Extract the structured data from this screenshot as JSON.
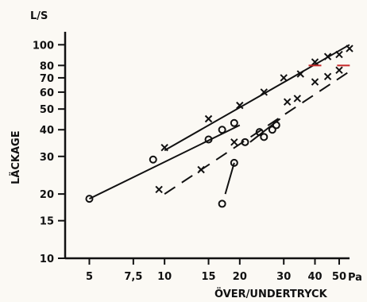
{
  "chart_data": {
    "type": "scatter",
    "x_scale": "log",
    "y_scale": "log",
    "y_unit": "L/S",
    "x_unit": "Pa",
    "ylabel": "LÄCKAGE",
    "xlabel": "ÖVER/UNDERTRYCK",
    "xlim": [
      4,
      55
    ],
    "ylim": [
      10,
      115
    ],
    "x_ticks": [
      {
        "value": 5,
        "label": "5"
      },
      {
        "value": 7.5,
        "label": "7,5"
      },
      {
        "value": 10,
        "label": "10"
      },
      {
        "value": 15,
        "label": "15"
      },
      {
        "value": 20,
        "label": "20"
      },
      {
        "value": 30,
        "label": "30"
      },
      {
        "value": 40,
        "label": "40"
      },
      {
        "value": 50,
        "label": "50"
      }
    ],
    "y_ticks": [
      {
        "value": 10,
        "label": "10"
      },
      {
        "value": 15,
        "label": "15"
      },
      {
        "value": 20,
        "label": "20"
      },
      {
        "value": 30,
        "label": "30"
      },
      {
        "value": 40,
        "label": "40"
      },
      {
        "value": 50,
        "label": "50"
      },
      {
        "value": 60,
        "label": "60"
      },
      {
        "value": 70,
        "label": "70"
      },
      {
        "value": 80,
        "label": "80",
        "color": "#8a1c1c"
      },
      {
        "value": 100,
        "label": "100"
      }
    ],
    "series": [
      {
        "marker": "x",
        "line": "solid",
        "points": [
          [
            10,
            33
          ],
          [
            15,
            45
          ],
          [
            20,
            52
          ],
          [
            25,
            60
          ],
          [
            30,
            70
          ],
          [
            35,
            73
          ],
          [
            40,
            83
          ],
          [
            45,
            88
          ],
          [
            50,
            90
          ],
          [
            55,
            96
          ]
        ]
      },
      {
        "marker": "o",
        "line": "solid",
        "points": [
          [
            5,
            19
          ],
          [
            9,
            29
          ],
          [
            15,
            36
          ],
          [
            17,
            40
          ],
          [
            19,
            43
          ]
        ]
      },
      {
        "marker": "x",
        "line": "dashed",
        "points": [
          [
            9.5,
            21
          ],
          [
            14,
            26
          ],
          [
            19,
            35
          ],
          [
            31,
            54
          ],
          [
            34,
            56
          ],
          [
            40,
            67
          ],
          [
            45,
            71
          ],
          [
            50,
            76
          ]
        ]
      },
      {
        "marker": "o",
        "line": "dashed",
        "points": [
          [
            19,
            28
          ],
          [
            21,
            35
          ],
          [
            24,
            39
          ],
          [
            25,
            37
          ],
          [
            27,
            40
          ],
          [
            28,
            42
          ],
          [
            17,
            18
          ]
        ]
      }
    ],
    "fit_lines": [
      {
        "style": "solid",
        "from": [
          10,
          32
        ],
        "to": [
          55,
          100
        ]
      },
      {
        "style": "solid",
        "from": [
          5,
          19
        ],
        "to": [
          20,
          42
        ]
      },
      {
        "style": "dashed",
        "from": [
          10,
          20
        ],
        "to": [
          55,
          75
        ]
      },
      {
        "style": "solid",
        "from": [
          17.5,
          20
        ],
        "to": [
          19,
          28
        ]
      },
      {
        "style": "solid",
        "from": [
          22,
          35
        ],
        "to": [
          29,
          45
        ]
      }
    ],
    "markers_red": [
      [
        40,
        80
      ],
      [
        52,
        80
      ]
    ]
  }
}
